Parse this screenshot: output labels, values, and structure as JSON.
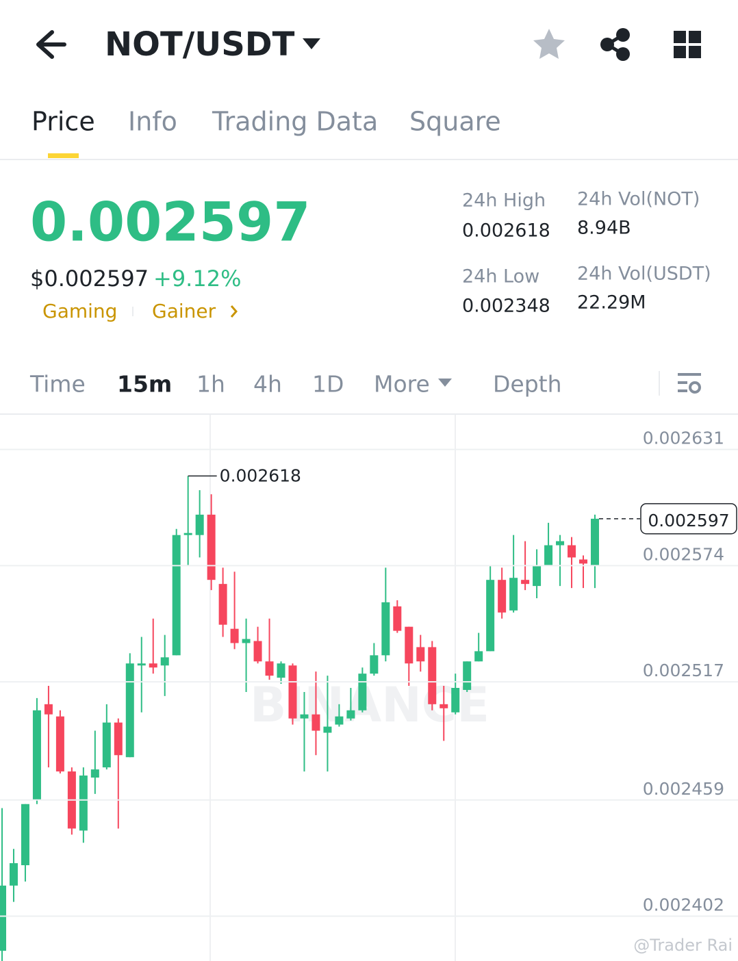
{
  "header": {
    "title": "NOT/USDT"
  },
  "tabs": [
    "Price",
    "Info",
    "Trading Data",
    "Square"
  ],
  "ticker": {
    "price": "0.002597",
    "usd_price": "$0.002597",
    "change": "+9.12%",
    "tags": [
      "Gaming",
      "Gainer"
    ],
    "stats": [
      {
        "label": "24h High",
        "value": "0.002618"
      },
      {
        "label": "24h Vol(NOT)",
        "value": "8.94B"
      },
      {
        "label": "24h Low",
        "value": "0.002348"
      },
      {
        "label": "24h Vol(USDT)",
        "value": "22.29M"
      }
    ]
  },
  "intervals": [
    "Time",
    "15m",
    "1h",
    "4h",
    "1D",
    "More",
    "Depth"
  ],
  "chart_data": {
    "type": "candlestick",
    "open": [
      0.002385,
      0.002417,
      0.002427,
      0.002459,
      0.002506,
      0.0025,
      0.002473,
      0.002444,
      0.00247,
      0.002475,
      0.002497,
      0.00248,
      0.002525,
      0.002526,
      0.002525,
      0.00253,
      0.002589,
      0.002589,
      0.002599,
      0.002565,
      0.002543,
      0.002536,
      0.002537,
      0.002527,
      0.002519,
      0.002525,
      0.002499,
      0.002501,
      0.002492,
      0.002496,
      0.002499,
      0.002503,
      0.002521,
      0.00253,
      0.002554,
      0.002544,
      0.002534,
      0.002534,
      0.002506,
      0.002502,
      0.002513,
      0.002527,
      0.002532,
      0.002567,
      0.002552,
      0.002567,
      0.002564,
      0.002574,
      0.002584,
      0.002584,
      0.002577,
      0.002574
    ],
    "high": [
      0.002455,
      0.002435,
      0.002457,
      0.002509,
      0.002515,
      0.002503,
      0.002475,
      0.002475,
      0.002493,
      0.002506,
      0.002499,
      0.002531,
      0.002539,
      0.002548,
      0.00254,
      0.002592,
      0.002618,
      0.002611,
      0.002609,
      0.002573,
      0.002571,
      0.002548,
      0.002544,
      0.002548,
      0.002527,
      0.002526,
      0.002512,
      0.002522,
      0.00252,
      0.002506,
      0.002514,
      0.002524,
      0.002536,
      0.002573,
      0.002557,
      0.002544,
      0.00254,
      0.002537,
      0.002515,
      0.002521,
      0.002527,
      0.002541,
      0.002574,
      0.002573,
      0.002589,
      0.002586,
      0.002582,
      0.002595,
      0.002589,
      0.002588,
      0.002579,
      0.002599
    ],
    "low": [
      0.00238,
      0.002409,
      0.002419,
      0.002457,
      0.002475,
      0.002472,
      0.002442,
      0.002438,
      0.002462,
      0.002474,
      0.002445,
      0.00248,
      0.002502,
      0.002521,
      0.00251,
      0.00253,
      0.002574,
      0.002578,
      0.002562,
      0.002539,
      0.002533,
      0.002512,
      0.002526,
      0.002518,
      0.002516,
      0.002496,
      0.002473,
      0.002481,
      0.002473,
      0.002495,
      0.002498,
      0.002502,
      0.00252,
      0.002527,
      0.002541,
      0.002515,
      0.002522,
      0.002503,
      0.002488,
      0.002501,
      0.002512,
      0.002527,
      0.002532,
      0.002548,
      0.002551,
      0.002562,
      0.002558,
      0.002574,
      0.002564,
      0.002563,
      0.002563,
      0.002563
    ],
    "close": [
      0.002417,
      0.002428,
      0.002457,
      0.002503,
      0.002501,
      0.002473,
      0.002445,
      0.002471,
      0.002474,
      0.002497,
      0.002481,
      0.002526,
      0.002526,
      0.002524,
      0.002529,
      0.002589,
      0.00259,
      0.002599,
      0.002567,
      0.002545,
      0.002536,
      0.002538,
      0.002527,
      0.00252,
      0.002526,
      0.002499,
      0.002501,
      0.002493,
      0.002495,
      0.0025,
      0.002503,
      0.002521,
      0.00253,
      0.002556,
      0.002542,
      0.002526,
      0.002527,
      0.002506,
      0.002504,
      0.002514,
      0.002527,
      0.002532,
      0.002567,
      0.002551,
      0.002568,
      0.002565,
      0.002574,
      0.002584,
      0.002586,
      0.002578,
      0.002575,
      0.002597
    ],
    "ylim": [
      0.00238,
      0.002648
    ],
    "yticks": [
      0.002402,
      0.002459,
      0.002517,
      0.002574,
      0.002631
    ],
    "high_marker": 0.002618,
    "last_price": 0.002597,
    "up_color": "#2ebd85",
    "down_color": "#f6465d",
    "grid": true,
    "watermark": "BINANCE"
  },
  "watermark": "@Trader Rai"
}
